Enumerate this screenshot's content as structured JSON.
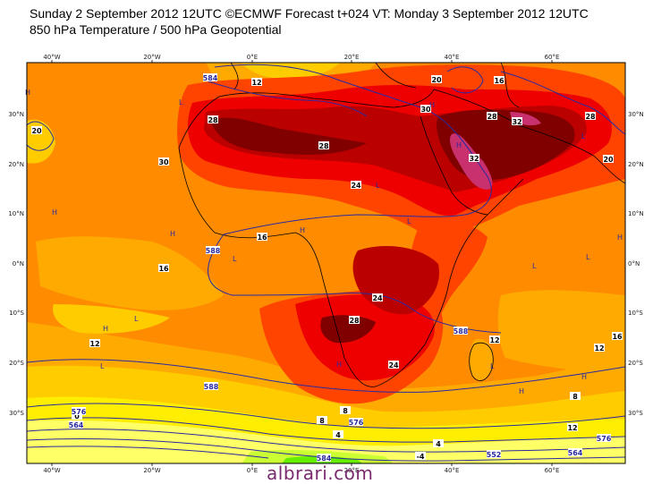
{
  "header": {
    "line1": "Sunday 2 September 2012 12UTC ©ECMWF Forecast t+024 VT: Monday 3 September 2012 12UTC",
    "line2": "850 hPa Temperature / 500 hPa Geopotential"
  },
  "axes": {
    "lon_ticks": [
      "40°W",
      "20°W",
      "0°E",
      "20°E",
      "40°E",
      "60°E"
    ],
    "lat_ticks": [
      "30°N",
      "20°N",
      "10°N",
      "0°N",
      "10°S",
      "20°S",
      "30°S"
    ]
  },
  "temperature_labels": [
    "28",
    "28",
    "24",
    "24",
    "30",
    "30",
    "20",
    "16",
    "16",
    "12",
    "12",
    "8",
    "8",
    "4",
    "4",
    "0",
    "-4",
    "24",
    "28",
    "32",
    "20",
    "16",
    "12",
    "8",
    "12",
    "16",
    "28",
    "24",
    "32",
    "28",
    "20",
    "16",
    "12"
  ],
  "geopotential_labels": [
    "584",
    "576",
    "564",
    "588",
    "588",
    "588",
    "576",
    "564",
    "552",
    "584",
    "576"
  ],
  "pressure_markers": [
    "H",
    "L"
  ],
  "colors": {
    "ocean_base": "#ff8c00",
    "warm_24": "#ff4400",
    "hot_28": "#ee0000",
    "hotter_32": "#bb0000",
    "hottest_36": "#800000",
    "extreme": "#c8306e",
    "cool_20": "#ffaa00",
    "cool_16": "#ffcc00",
    "cool_12": "#ffee00",
    "cool_8": "#ffff66",
    "cool_4": "#ccff33",
    "contour_blue": "#2a2aa0"
  },
  "watermark": "albrari.com"
}
